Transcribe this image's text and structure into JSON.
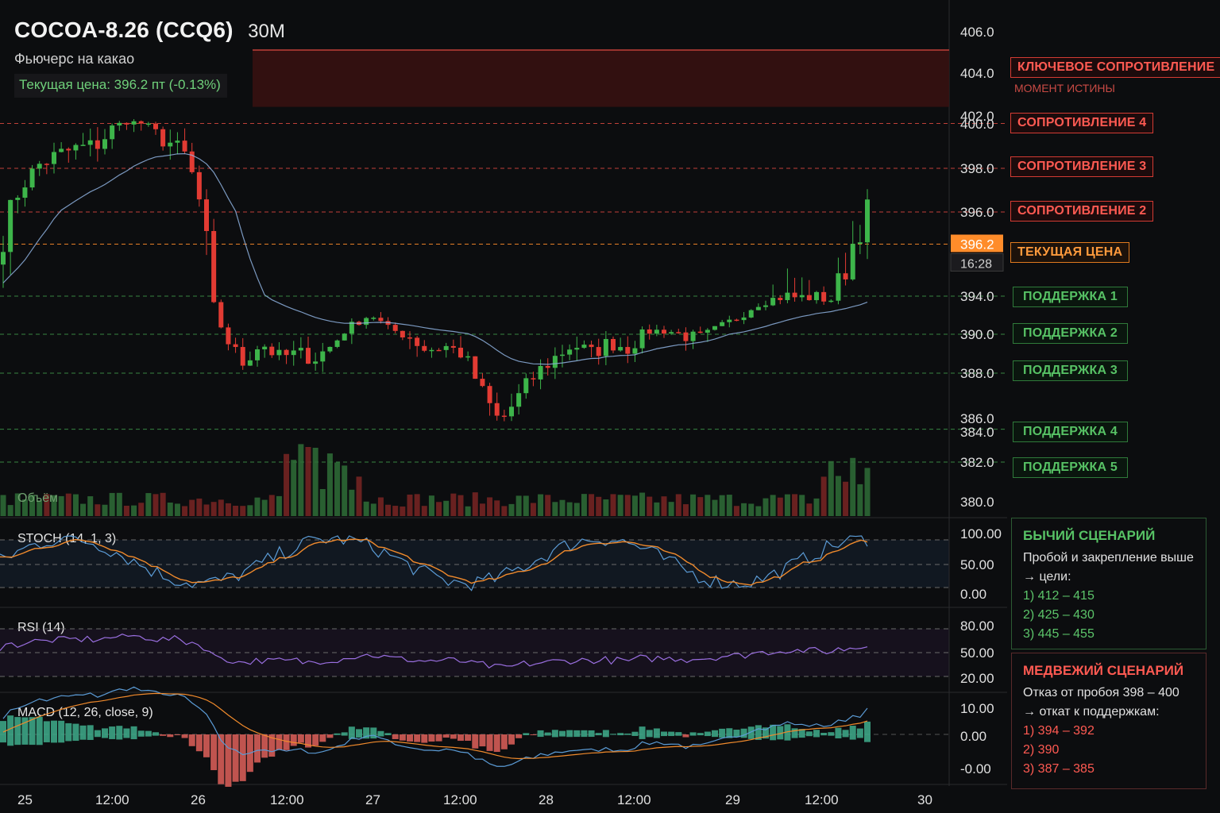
{
  "header": {
    "title": "COCOA-8.26 (CCQ6)",
    "timeframe": "30М",
    "subtitle": "Фьючерс на какао",
    "price_line": "Текущая цена: 396.2 пт (-0.13%)"
  },
  "colors": {
    "background": "#0c0d0f",
    "bull": "#3db54a",
    "bear": "#e23b33",
    "ema": "#8fb3e0",
    "resistance": "#e04a40",
    "support": "#3f9a4c",
    "current": "#ff8c2a",
    "stoch_k": "#5b9bd5",
    "stoch_d": "#f08a2c",
    "rsi": "#9a6fe0",
    "macd": "#5b9bd5",
    "signal": "#f08a2c"
  },
  "price_axis": {
    "ticks": [
      "406.0",
      "404.0",
      "402.0",
      "400.0",
      "398.0",
      "396.0",
      "394.0",
      "390.0",
      "388.0",
      "386.0",
      "384.0",
      "382.0",
      "380.0"
    ],
    "current_price": "396.2",
    "current_time": "16:28"
  },
  "levels": {
    "key_resistance": "КЛЮЧЕВОЕ СОПРОТИВЛЕНИЕ",
    "key_resistance_note": "МОМЕНТ ИСТИНЫ",
    "r4": "СОПРОТИВЛЕНИЕ 4",
    "r3": "СОПРОТИВЛЕНИЕ 3",
    "r2": "СОПРОТИВЛЕНИЕ 2",
    "current": "ТЕКУЩАЯ ЦЕНА",
    "s1": "ПОДДЕРЖКА 1",
    "s2": "ПОДДЕРЖКА 2",
    "s3": "ПОДДЕРЖКА 3",
    "s4": "ПОДДЕРЖКА 4",
    "s5": "ПОДДЕРЖКА 5"
  },
  "volume_label": "Объём",
  "indicators": {
    "stoch": {
      "label": "STOCH (14, 1, 3)",
      "ticks": [
        "100.00",
        "50.00",
        "0.00"
      ]
    },
    "rsi": {
      "label": "RSI (14)",
      "ticks": [
        "80.00",
        "50.00",
        "20.00"
      ]
    },
    "macd": {
      "label": "MACD (12, 26, close, 9)",
      "ticks": [
        "10.00",
        "0.00",
        "-0.00"
      ]
    }
  },
  "time_axis": [
    "25",
    "12:00",
    "26",
    "12:00",
    "27",
    "12:00",
    "28",
    "12:00",
    "29",
    "12:00",
    "30"
  ],
  "scenarios": {
    "bull": {
      "title": "БЫЧИЙ СЦЕНАРИЙ",
      "line1": "Пробой и закрепление выше",
      "line2": "→ цели:",
      "targets": [
        "1) 412 – 415",
        "2) 425 – 430",
        "3) 445 – 455"
      ]
    },
    "bear": {
      "title": "МЕДВЕЖИЙ СЦЕНАРИЙ",
      "line1": "Отказ от пробоя 398 – 400",
      "line2": "→ откат к поддержкам:",
      "targets": [
        "1) 394 – 392",
        "2) 390",
        "3) 387 – 385"
      ]
    }
  },
  "chart_data": {
    "type": "candlestick",
    "symbol": "COCOA-8.26 (CCQ6)",
    "interval": "30M",
    "x_labels": [
      "25",
      "12:00",
      "26",
      "12:00",
      "27",
      "12:00",
      "28",
      "12:00",
      "29",
      "12:00",
      "30"
    ],
    "close_path": [
      395.5,
      397.2,
      398.2,
      398.6,
      398.9,
      399.0,
      399.8,
      400.6,
      399.6,
      399.2,
      398.5,
      395.5,
      390.0,
      388.5,
      389.6,
      388.8,
      389.0,
      388.8,
      389.5,
      391.0,
      392.1,
      390.5,
      390.0,
      389.2,
      389.4,
      389.0,
      387.2,
      385.8,
      386.9,
      388.0,
      388.8,
      389.5,
      389.0,
      389.6,
      389.3,
      390.3,
      390.4,
      390.0,
      389.8,
      390.8,
      391.8,
      393.2,
      393.8,
      393.9,
      393.8,
      393.6,
      395.0,
      396.2
    ],
    "key_resistance_zone": [
      402.2,
      405.0
    ],
    "resistance_levels": {
      "R4": 400.1,
      "R3": 398.0,
      "R2": 396.0
    },
    "current_price": 396.2,
    "support_levels": {
      "S1": 394.0,
      "S2": 390.0,
      "S3": 388.0,
      "S4": 384.4,
      "S5": 382.0
    },
    "ema_visible": true,
    "indicators": [
      "STOCH (14, 1, 3)",
      "RSI (14)",
      "MACD (12, 26, close, 9)"
    ],
    "grid": false
  }
}
